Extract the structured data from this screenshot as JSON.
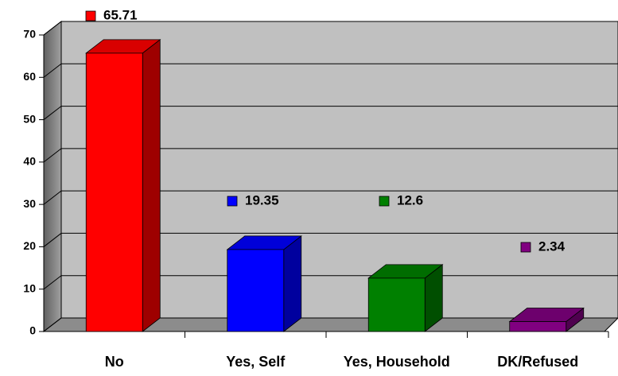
{
  "chart_data": {
    "type": "bar3d",
    "categories": [
      "No",
      "Yes, Self",
      "Yes, Household",
      "DK/Refused"
    ],
    "values": [
      65.71,
      19.35,
      12.6,
      2.34
    ],
    "colors": [
      "#ff0000",
      "#0000ff",
      "#008000",
      "#800080"
    ],
    "ylim": [
      0,
      70
    ],
    "yticks": [
      0,
      10,
      20,
      30,
      40,
      50,
      60,
      70
    ],
    "grid": true
  }
}
